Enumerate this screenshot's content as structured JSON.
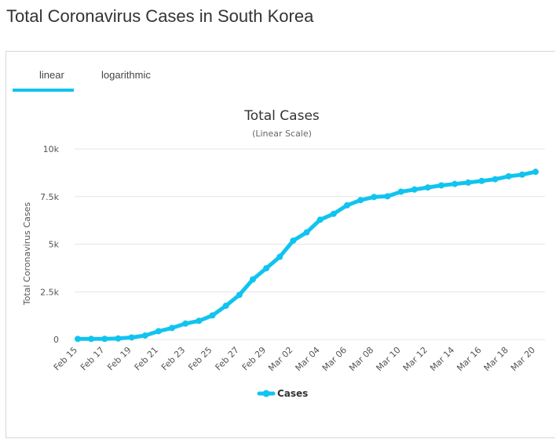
{
  "page": {
    "title": "Total Coronavirus Cases in South Korea"
  },
  "tabs": [
    {
      "label": "linear",
      "active": true
    },
    {
      "label": "logarithmic",
      "active": false
    }
  ],
  "colors": {
    "accent": "#10c4ef",
    "series": "#10c4ef",
    "grid": "#e6e6e6"
  },
  "chart_data": {
    "type": "line",
    "title": "Total Cases",
    "subtitle": "(Linear Scale)",
    "xlabel": "",
    "ylabel": "Total Coronavirus Cases",
    "ylim": [
      0,
      10000
    ],
    "yticks": [
      {
        "value": 0,
        "label": "0"
      },
      {
        "value": 2500,
        "label": "2.5k"
      },
      {
        "value": 5000,
        "label": "5k"
      },
      {
        "value": 7500,
        "label": "7.5k"
      },
      {
        "value": 10000,
        "label": "10k"
      }
    ],
    "xticks": [
      "Feb 15",
      "Feb 17",
      "Feb 19",
      "Feb 21",
      "Feb 23",
      "Feb 25",
      "Feb 27",
      "Feb 29",
      "Mar 02",
      "Mar 04",
      "Mar 06",
      "Mar 08",
      "Mar 10",
      "Mar 12",
      "Mar 14",
      "Mar 16",
      "Mar 18",
      "Mar 20"
    ],
    "x": [
      "Feb 15",
      "Feb 16",
      "Feb 17",
      "Feb 18",
      "Feb 19",
      "Feb 20",
      "Feb 21",
      "Feb 22",
      "Feb 23",
      "Feb 24",
      "Feb 25",
      "Feb 26",
      "Feb 27",
      "Feb 28",
      "Feb 29",
      "Mar 01",
      "Mar 02",
      "Mar 03",
      "Mar 04",
      "Mar 05",
      "Mar 06",
      "Mar 07",
      "Mar 08",
      "Mar 09",
      "Mar 10",
      "Mar 11",
      "Mar 12",
      "Mar 13",
      "Mar 14",
      "Mar 15",
      "Mar 16",
      "Mar 17",
      "Mar 18",
      "Mar 19",
      "Mar 20"
    ],
    "series": [
      {
        "name": "Cases",
        "values": [
          28,
          29,
          31,
          51,
          104,
          204,
          433,
          602,
          833,
          977,
          1261,
          1766,
          2337,
          3150,
          3736,
          4335,
          5186,
          5621,
          6284,
          6593,
          7041,
          7313,
          7478,
          7513,
          7755,
          7869,
          7979,
          8086,
          8162,
          8236,
          8320,
          8413,
          8565,
          8652,
          8799
        ]
      }
    ],
    "grid": true,
    "legend": "bottom-center"
  }
}
